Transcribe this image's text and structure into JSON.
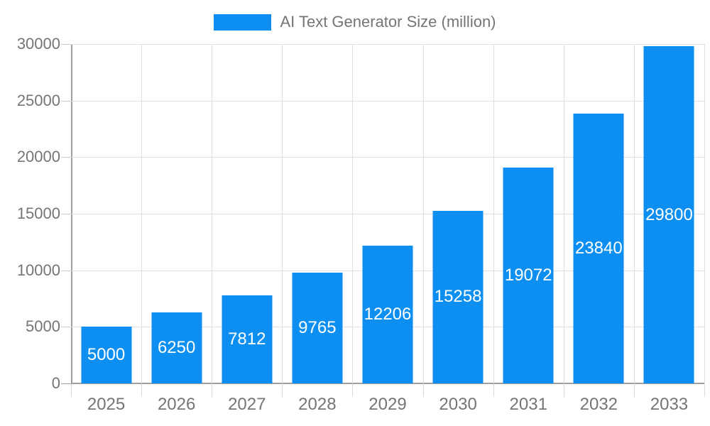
{
  "chart_data": {
    "type": "bar",
    "title": "AI Text Generator Size (million)",
    "series_label": "AI Text Generator Size (million)",
    "categories": [
      "2025",
      "2026",
      "2027",
      "2028",
      "2029",
      "2030",
      "2031",
      "2032",
      "2033"
    ],
    "values": [
      5000,
      6250,
      7812,
      9765,
      12206,
      15258,
      19072,
      23840,
      29800
    ],
    "value_labels": [
      "5000",
      "6250",
      "7812",
      "9765",
      "12206",
      "15258",
      "19072",
      "23840",
      "29800"
    ],
    "yticks": [
      0,
      5000,
      10000,
      15000,
      20000,
      25000,
      30000
    ],
    "ytick_labels": [
      "0",
      "5000",
      "10000",
      "15000",
      "20000",
      "25000",
      "30000"
    ],
    "ylim": [
      0,
      30000
    ],
    "xlabel": "",
    "ylabel": "",
    "grid": true,
    "legend_position": "top-center",
    "colors": {
      "bar": "#0d8ff2",
      "bar_value_text": "#ffffff",
      "axis_text": "#757575",
      "legend_text": "#757575",
      "gridline": "#e0e0e0",
      "axis_line": "#9e9e9e",
      "background": "#ffffff"
    }
  }
}
